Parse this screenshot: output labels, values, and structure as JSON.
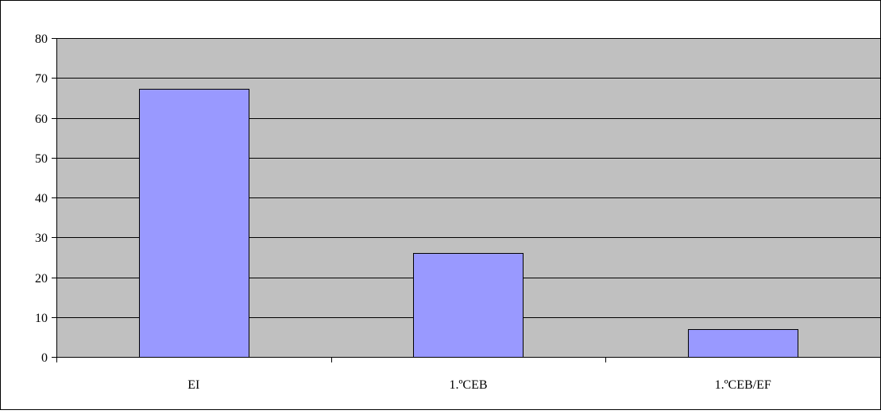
{
  "chart_data": {
    "type": "bar",
    "categories": [
      "EI",
      "1.ºCEB",
      "1.ºCEB/EF"
    ],
    "values": [
      67.3,
      26,
      7
    ],
    "ylim": [
      0,
      80
    ],
    "yticks": [
      0,
      10,
      20,
      30,
      40,
      50,
      60,
      70,
      80
    ],
    "ytick_labels": [
      "0",
      "10",
      "20",
      "30",
      "40",
      "50",
      "60",
      "70",
      "80"
    ],
    "grid": true,
    "legend": "none",
    "colors": {
      "plot_background": "#c0c0c0",
      "bar_fill": "#9999ff",
      "bar_stroke": "#000000",
      "gridline": "#000000",
      "border": "#000000"
    }
  }
}
